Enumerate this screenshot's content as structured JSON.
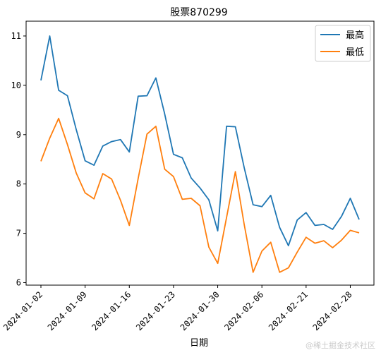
{
  "watermark": "@稀土掘金技术社区",
  "chart_data": {
    "type": "line",
    "title": "股票870299",
    "xlabel": "日期",
    "ylabel": "",
    "ylim": [
      5.95,
      11.3
    ],
    "yticks": [
      6,
      7,
      8,
      9,
      10,
      11
    ],
    "xtick_labels": [
      "2024-01-02",
      "2024-01-09",
      "2024-01-16",
      "2024-01-23",
      "2024-01-30",
      "2024-02-06",
      "2024-02-21",
      "2024-02-28"
    ],
    "legend_position": "top-right",
    "grid": false,
    "series": [
      {
        "name": "最高",
        "color": "#1f77b4",
        "values": [
          10.1,
          11.0,
          9.9,
          9.79,
          9.1,
          8.47,
          8.38,
          8.77,
          8.86,
          8.9,
          8.65,
          9.78,
          9.79,
          10.15,
          9.42,
          8.6,
          8.53,
          8.12,
          7.92,
          7.68,
          7.05,
          9.17,
          9.16,
          8.33,
          7.58,
          7.54,
          7.77,
          7.12,
          6.75,
          7.27,
          7.42,
          7.16,
          7.18,
          7.08,
          7.34,
          7.71,
          7.28
        ]
      },
      {
        "name": "最低",
        "color": "#ff7f0e",
        "values": [
          8.46,
          8.93,
          9.33,
          8.8,
          8.22,
          7.82,
          7.7,
          8.21,
          8.1,
          7.67,
          7.16,
          8.11,
          9.01,
          9.17,
          8.3,
          8.15,
          7.69,
          7.71,
          7.56,
          6.72,
          6.39,
          7.32,
          8.25,
          7.18,
          6.21,
          6.64,
          6.82,
          6.21,
          6.3,
          6.62,
          6.92,
          6.8,
          6.85,
          6.71,
          6.86,
          7.06,
          7.01
        ]
      }
    ]
  }
}
